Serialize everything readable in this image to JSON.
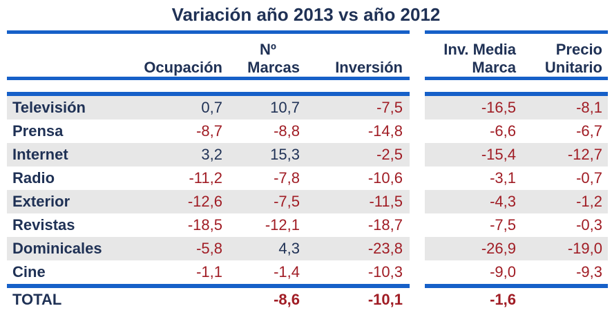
{
  "title": "Variación año 2013 vs año 2012",
  "colors": {
    "accent_blue": "#1660C8",
    "heading_navy": "#1F3155",
    "negative_red": "#A01C24",
    "positive_navy": "#1F3155",
    "row_shade": "#E7E7E7"
  },
  "chart_data": {
    "type": "table",
    "title": "Variación año 2013 vs año 2012",
    "columns": [
      "",
      "Ocupación",
      "Nº Marcas",
      "Inversión",
      "Inv. Media Marca",
      "Precio Unitario"
    ],
    "rows": [
      [
        "Televisión",
        0.7,
        10.7,
        -7.5,
        -16.5,
        -8.1
      ],
      [
        "Prensa",
        -8.7,
        -8.8,
        -14.8,
        -6.6,
        -6.7
      ],
      [
        "Internet",
        3.2,
        15.3,
        -2.5,
        -15.4,
        -12.7
      ],
      [
        "Radio",
        -11.2,
        -7.8,
        -10.6,
        -3.1,
        -0.7
      ],
      [
        "Exterior",
        -12.6,
        -7.5,
        -11.5,
        -4.3,
        -1.2
      ],
      [
        "Revistas",
        -18.5,
        -12.1,
        -18.7,
        -7.5,
        -0.3
      ],
      [
        "Dominicales",
        -5.8,
        4.3,
        -23.8,
        -26.9,
        -19.0
      ],
      [
        "Cine",
        -1.1,
        -1.4,
        -10.3,
        -9.0,
        -9.3
      ],
      [
        "TOTAL",
        null,
        -8.6,
        -10.1,
        -1.6,
        null
      ]
    ],
    "number_format": "decimal comma, one decimal place",
    "notes": "negative values shown in dark red, positive in dark navy; alternating gray row shading"
  },
  "table": {
    "headers": {
      "ocupacion": {
        "line1": "",
        "line2": "Ocupación"
      },
      "marcas": {
        "line1": "Nº",
        "line2": "Marcas"
      },
      "inversion": {
        "line1": "",
        "line2": "Inversión"
      },
      "inv_media": {
        "line1": "Inv. Media",
        "line2": "Marca"
      },
      "precio": {
        "line1": "Precio",
        "line2": "Unitario"
      }
    },
    "rows": [
      {
        "label": "Televisión",
        "ocupacion": "0,7",
        "marcas": "10,7",
        "inversion": "-7,5",
        "inv_media": "-16,5",
        "precio": "-8,1",
        "shaded": true
      },
      {
        "label": "Prensa",
        "ocupacion": "-8,7",
        "marcas": "-8,8",
        "inversion": "-14,8",
        "inv_media": "-6,6",
        "precio": "-6,7",
        "shaded": false
      },
      {
        "label": "Internet",
        "ocupacion": "3,2",
        "marcas": "15,3",
        "inversion": "-2,5",
        "inv_media": "-15,4",
        "precio": "-12,7",
        "shaded": true
      },
      {
        "label": "Radio",
        "ocupacion": "-11,2",
        "marcas": "-7,8",
        "inversion": "-10,6",
        "inv_media": "-3,1",
        "precio": "-0,7",
        "shaded": false
      },
      {
        "label": "Exterior",
        "ocupacion": "-12,6",
        "marcas": "-7,5",
        "inversion": "-11,5",
        "inv_media": "-4,3",
        "precio": "-1,2",
        "shaded": true
      },
      {
        "label": "Revistas",
        "ocupacion": "-18,5",
        "marcas": "-12,1",
        "inversion": "-18,7",
        "inv_media": "-7,5",
        "precio": "-0,3",
        "shaded": false
      },
      {
        "label": "Dominicales",
        "ocupacion": "-5,8",
        "marcas": "4,3",
        "inversion": "-23,8",
        "inv_media": "-26,9",
        "precio": "-19,0",
        "shaded": true
      },
      {
        "label": "Cine",
        "ocupacion": "-1,1",
        "marcas": "-1,4",
        "inversion": "-10,3",
        "inv_media": "-9,0",
        "precio": "-9,3",
        "shaded": false
      }
    ],
    "total": {
      "label": "TOTAL",
      "ocupacion": "",
      "marcas": "-8,6",
      "inversion": "-10,1",
      "inv_media": "-1,6",
      "precio": ""
    }
  }
}
